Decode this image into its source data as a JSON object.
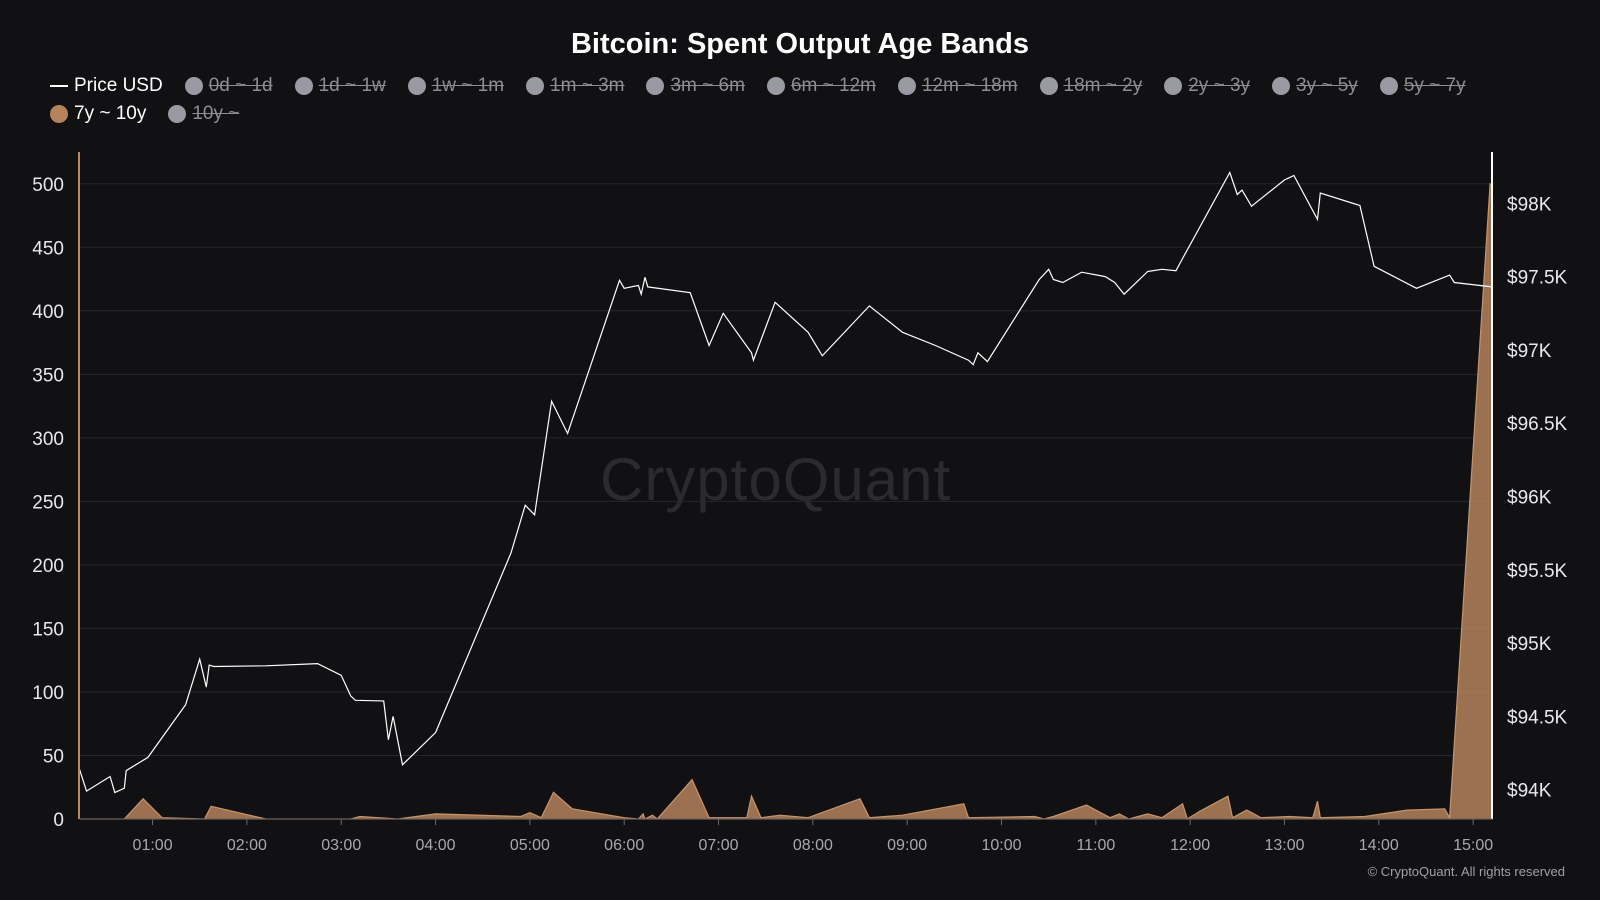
{
  "chart_data": {
    "type": "area",
    "title": "Bitcoin: Spent Output Age Bands",
    "legend": [
      {
        "name": "Price USD",
        "kind": "line",
        "color": "#ffffff",
        "active": true
      },
      {
        "name": "0d ~ 1d",
        "kind": "dot",
        "color": "#9a9aa3",
        "active": false
      },
      {
        "name": "1d ~ 1w",
        "kind": "dot",
        "color": "#9a9aa3",
        "active": false
      },
      {
        "name": "1w ~ 1m",
        "kind": "dot",
        "color": "#9a9aa3",
        "active": false
      },
      {
        "name": "1m ~ 3m",
        "kind": "dot",
        "color": "#9a9aa3",
        "active": false
      },
      {
        "name": "3m ~ 6m",
        "kind": "dot",
        "color": "#9a9aa3",
        "active": false
      },
      {
        "name": "6m ~ 12m",
        "kind": "dot",
        "color": "#9a9aa3",
        "active": false
      },
      {
        "name": "12m ~ 18m",
        "kind": "dot",
        "color": "#9a9aa3",
        "active": false
      },
      {
        "name": "18m ~ 2y",
        "kind": "dot",
        "color": "#9a9aa3",
        "active": false
      },
      {
        "name": "2y ~ 3y",
        "kind": "dot",
        "color": "#9a9aa3",
        "active": false
      },
      {
        "name": "3y ~ 5y",
        "kind": "dot",
        "color": "#9a9aa3",
        "active": false
      },
      {
        "name": "5y ~ 7y",
        "kind": "dot",
        "color": "#9a9aa3",
        "active": false
      },
      {
        "name": "7y ~ 10y",
        "kind": "dot",
        "color": "#b5825c",
        "active": true
      },
      {
        "name": "10y ~",
        "kind": "dot",
        "color": "#9a9aa3",
        "active": false
      }
    ],
    "x_ticks": [
      "01:00",
      "02:00",
      "03:00",
      "04:00",
      "05:00",
      "06:00",
      "07:00",
      "08:00",
      "09:00",
      "10:00",
      "11:00",
      "12:00",
      "13:00",
      "14:00",
      "15:00"
    ],
    "x_range_hours": [
      0.22,
      15.2
    ],
    "y_left": {
      "ticks": [
        0,
        50,
        100,
        150,
        200,
        250,
        300,
        350,
        400,
        450,
        500
      ],
      "range": [
        0,
        525
      ]
    },
    "y_right": {
      "ticks": [
        94000,
        94500,
        95000,
        95500,
        96000,
        96500,
        97000,
        97500,
        98000
      ],
      "labels": [
        "$94K",
        "$94.5K",
        "$95K",
        "$95.5K",
        "$96K",
        "$96.5K",
        "$97K",
        "$97.5K",
        "$98K"
      ],
      "range": [
        93800,
        98350
      ]
    },
    "series": [
      {
        "name": "Price USD",
        "kind": "line",
        "axis": "right",
        "color": "#ffffff",
        "points": [
          [
            0.22,
            94150
          ],
          [
            0.3,
            93990
          ],
          [
            0.55,
            94090
          ],
          [
            0.6,
            93980
          ],
          [
            0.7,
            94010
          ],
          [
            0.72,
            94130
          ],
          [
            0.95,
            94220
          ],
          [
            1.35,
            94580
          ],
          [
            1.5,
            94890
          ],
          [
            1.57,
            94700
          ],
          [
            1.6,
            94850
          ],
          [
            1.65,
            94840
          ],
          [
            2.2,
            94845
          ],
          [
            2.75,
            94860
          ],
          [
            3.0,
            94780
          ],
          [
            3.1,
            94640
          ],
          [
            3.15,
            94610
          ],
          [
            3.45,
            94605
          ],
          [
            3.5,
            94340
          ],
          [
            3.55,
            94500
          ],
          [
            3.65,
            94170
          ],
          [
            4.0,
            94390
          ],
          [
            4.8,
            95615
          ],
          [
            4.95,
            95940
          ],
          [
            5.05,
            95875
          ],
          [
            5.23,
            96650
          ],
          [
            5.4,
            96430
          ],
          [
            5.95,
            97475
          ],
          [
            6.0,
            97420
          ],
          [
            6.15,
            97440
          ],
          [
            6.18,
            97380
          ],
          [
            6.22,
            97495
          ],
          [
            6.25,
            97430
          ],
          [
            6.7,
            97390
          ],
          [
            6.9,
            97030
          ],
          [
            7.05,
            97250
          ],
          [
            7.35,
            96980
          ],
          [
            7.37,
            96930
          ],
          [
            7.6,
            97325
          ],
          [
            7.95,
            97120
          ],
          [
            8.1,
            96960
          ],
          [
            8.6,
            97300
          ],
          [
            8.95,
            97120
          ],
          [
            9.3,
            97030
          ],
          [
            9.65,
            96930
          ],
          [
            9.7,
            96900
          ],
          [
            9.75,
            96980
          ],
          [
            9.85,
            96920
          ],
          [
            10.4,
            97480
          ],
          [
            10.5,
            97550
          ],
          [
            10.55,
            97480
          ],
          [
            10.65,
            97460
          ],
          [
            10.85,
            97530
          ],
          [
            11.1,
            97500
          ],
          [
            11.2,
            97460
          ],
          [
            11.3,
            97380
          ],
          [
            11.55,
            97535
          ],
          [
            11.7,
            97550
          ],
          [
            11.85,
            97540
          ],
          [
            11.9,
            97600
          ],
          [
            12.42,
            98210
          ],
          [
            12.5,
            98060
          ],
          [
            12.55,
            98090
          ],
          [
            12.65,
            97980
          ],
          [
            13.0,
            98160
          ],
          [
            13.1,
            98190
          ],
          [
            13.35,
            97890
          ],
          [
            13.38,
            98070
          ],
          [
            13.8,
            97985
          ],
          [
            13.95,
            97570
          ],
          [
            14.4,
            97420
          ],
          [
            14.75,
            97510
          ],
          [
            14.8,
            97460
          ],
          [
            15.2,
            97430
          ]
        ]
      },
      {
        "name": "7y ~ 10y",
        "kind": "area",
        "axis": "left",
        "color": "#b5825c",
        "points": [
          [
            0.22,
            0
          ],
          [
            0.7,
            0
          ],
          [
            0.9,
            16
          ],
          [
            1.1,
            1
          ],
          [
            1.55,
            0
          ],
          [
            1.62,
            10
          ],
          [
            2.2,
            0
          ],
          [
            3.1,
            0
          ],
          [
            3.2,
            2
          ],
          [
            3.6,
            0
          ],
          [
            4.0,
            4
          ],
          [
            4.9,
            2
          ],
          [
            5.0,
            5
          ],
          [
            5.12,
            1
          ],
          [
            5.25,
            21
          ],
          [
            5.45,
            8
          ],
          [
            6.0,
            1
          ],
          [
            6.15,
            0
          ],
          [
            6.2,
            4
          ],
          [
            6.22,
            0
          ],
          [
            6.3,
            3
          ],
          [
            6.35,
            0
          ],
          [
            6.72,
            31
          ],
          [
            6.9,
            1
          ],
          [
            7.3,
            1
          ],
          [
            7.35,
            18
          ],
          [
            7.45,
            1
          ],
          [
            7.65,
            3
          ],
          [
            7.95,
            1
          ],
          [
            8.5,
            16
          ],
          [
            8.6,
            1
          ],
          [
            8.95,
            3
          ],
          [
            9.6,
            12
          ],
          [
            9.65,
            1
          ],
          [
            10.35,
            2
          ],
          [
            10.45,
            0
          ],
          [
            10.55,
            2
          ],
          [
            10.9,
            11
          ],
          [
            11.15,
            1
          ],
          [
            11.25,
            4
          ],
          [
            11.35,
            0
          ],
          [
            11.55,
            4
          ],
          [
            11.7,
            1
          ],
          [
            11.92,
            12
          ],
          [
            11.97,
            0
          ],
          [
            12.1,
            6
          ],
          [
            12.4,
            18
          ],
          [
            12.45,
            1
          ],
          [
            12.6,
            7
          ],
          [
            12.75,
            1
          ],
          [
            13.05,
            2
          ],
          [
            13.3,
            1
          ],
          [
            13.35,
            14
          ],
          [
            13.38,
            1
          ],
          [
            13.85,
            2
          ],
          [
            14.3,
            7
          ],
          [
            14.7,
            8
          ],
          [
            14.75,
            1
          ],
          [
            15.18,
            500
          ],
          [
            15.2,
            500
          ],
          [
            15.2,
            0
          ]
        ]
      }
    ]
  },
  "watermark": "CryptoQuant",
  "copyright": "© CryptoQuant. All rights reserved"
}
